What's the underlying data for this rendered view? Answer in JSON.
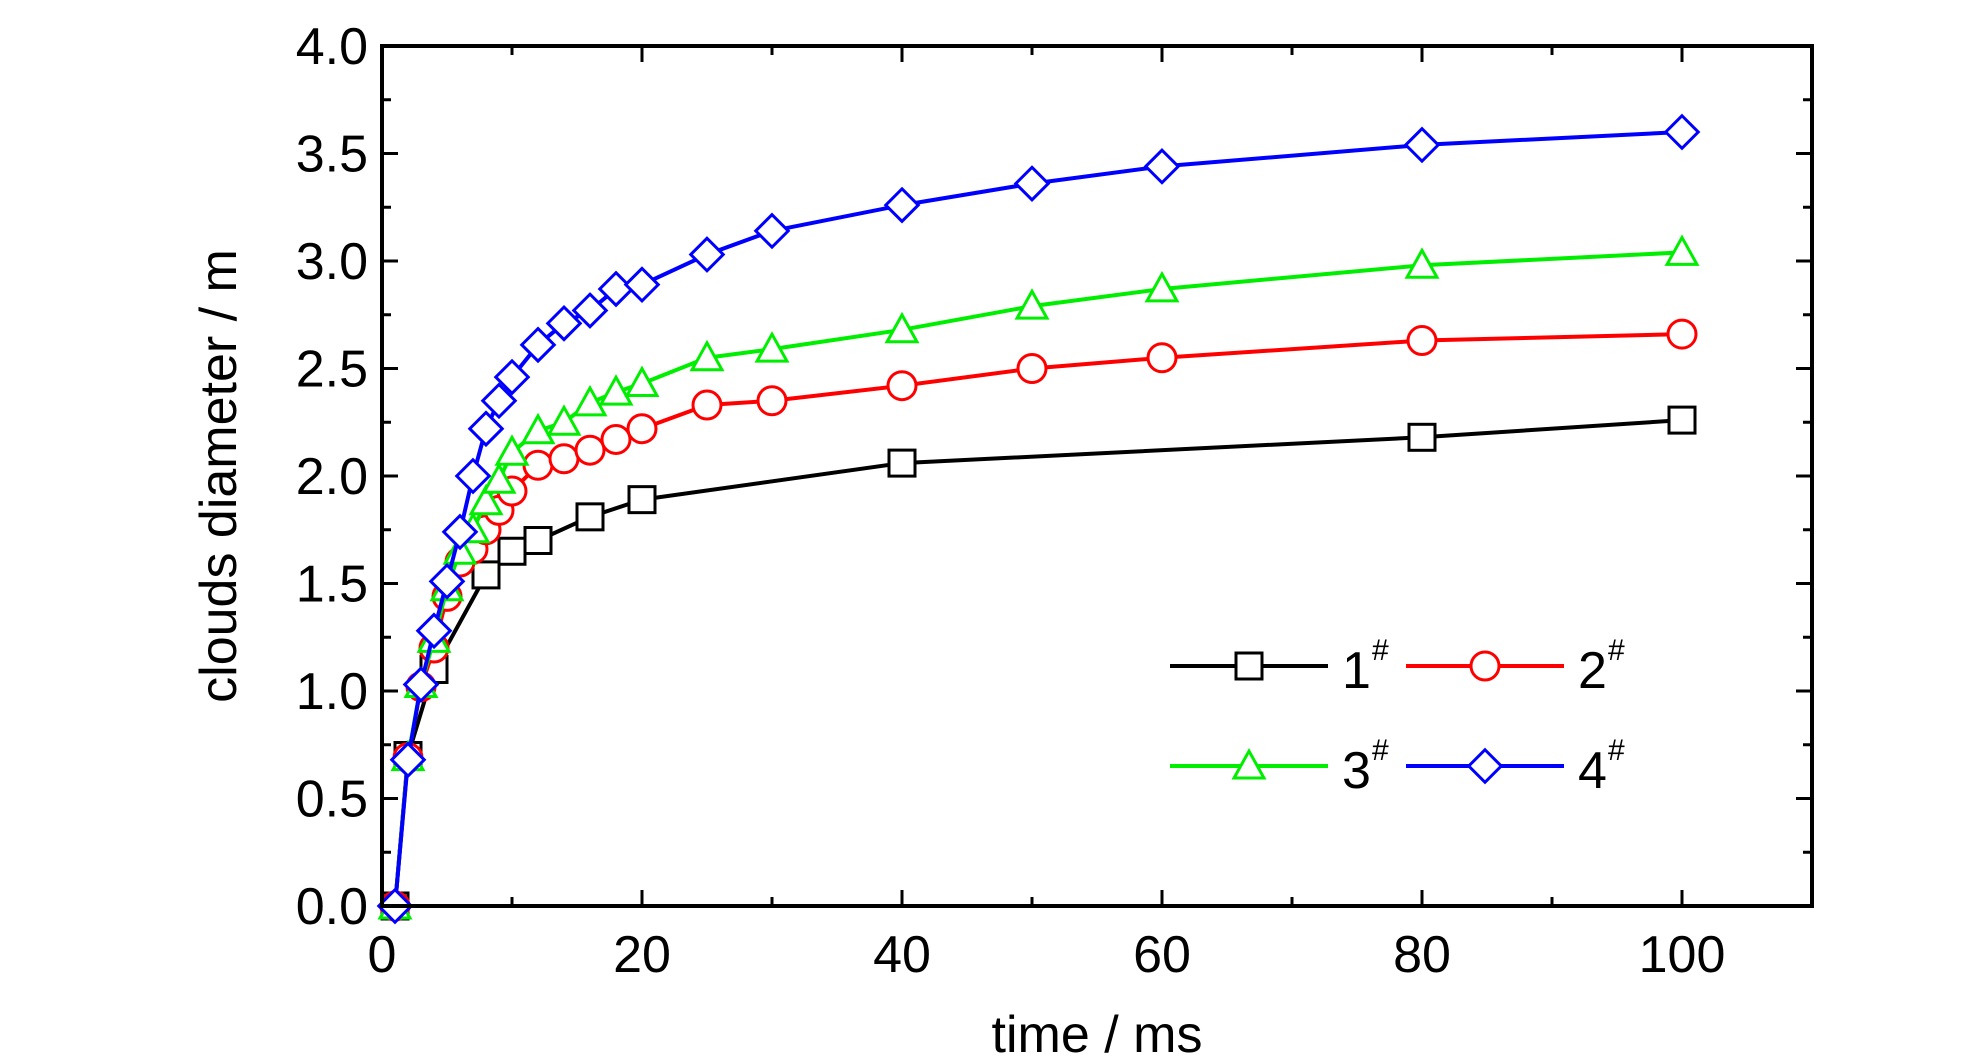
{
  "chart_data": {
    "type": "line",
    "title": "",
    "xlabel": "time / ms",
    "ylabel": "clouds diameter / m",
    "xlim": [
      0,
      110
    ],
    "ylim": [
      0,
      4.0
    ],
    "xticks": [
      0,
      20,
      40,
      60,
      80,
      100
    ],
    "xtick_labels": [
      "0",
      "20",
      "40",
      "60",
      "80",
      "100"
    ],
    "yticks": [
      0,
      0.5,
      1.0,
      1.5,
      2.0,
      2.5,
      3.0,
      3.5,
      4.0
    ],
    "ytick_labels": [
      "0.0",
      "0.5",
      "1.0",
      "1.5",
      "2.0",
      "2.5",
      "3.0",
      "3.5",
      "4.0"
    ],
    "grid": false,
    "legend_position": "lower-right",
    "series": [
      {
        "name": "1",
        "name_sup": "#",
        "color": "#000000",
        "marker": "square",
        "x": [
          1,
          2,
          4,
          8,
          10,
          12,
          16,
          20,
          40,
          80,
          100
        ],
        "y": [
          0.0,
          0.7,
          1.1,
          1.54,
          1.65,
          1.7,
          1.81,
          1.89,
          2.06,
          2.18,
          2.26
        ]
      },
      {
        "name": "2",
        "name_sup": "#",
        "color": "#ff0000",
        "marker": "circle",
        "x": [
          1,
          2,
          3,
          4,
          5,
          6,
          7,
          8,
          9,
          10,
          12,
          14,
          16,
          18,
          20,
          25,
          30,
          40,
          50,
          60,
          80,
          100
        ],
        "y": [
          0.0,
          0.69,
          1.02,
          1.2,
          1.44,
          1.6,
          1.66,
          1.75,
          1.84,
          1.93,
          2.05,
          2.08,
          2.12,
          2.17,
          2.22,
          2.33,
          2.35,
          2.42,
          2.5,
          2.55,
          2.63,
          2.66
        ]
      },
      {
        "name": "3",
        "name_sup": "#",
        "color": "#00ee00",
        "marker": "triangle",
        "x": [
          1,
          2,
          3,
          4,
          5,
          6,
          7,
          8,
          9,
          10,
          12,
          14,
          16,
          18,
          20,
          25,
          30,
          40,
          50,
          60,
          80,
          100
        ],
        "y": [
          0.0,
          0.69,
          1.03,
          1.24,
          1.48,
          1.65,
          1.75,
          1.88,
          1.98,
          2.11,
          2.21,
          2.25,
          2.34,
          2.39,
          2.43,
          2.55,
          2.59,
          2.68,
          2.79,
          2.87,
          2.98,
          3.04
        ]
      },
      {
        "name": "4",
        "name_sup": "#",
        "color": "#0000ff",
        "marker": "diamond",
        "x": [
          1,
          2,
          3,
          4,
          5,
          6,
          7,
          8,
          9,
          10,
          12,
          14,
          16,
          18,
          20,
          25,
          30,
          40,
          50,
          60,
          80,
          100
        ],
        "y": [
          0.0,
          0.68,
          1.03,
          1.28,
          1.51,
          1.74,
          2.0,
          2.22,
          2.35,
          2.46,
          2.61,
          2.71,
          2.77,
          2.87,
          2.89,
          3.03,
          3.14,
          3.26,
          3.36,
          3.44,
          3.54,
          3.6
        ]
      }
    ]
  }
}
